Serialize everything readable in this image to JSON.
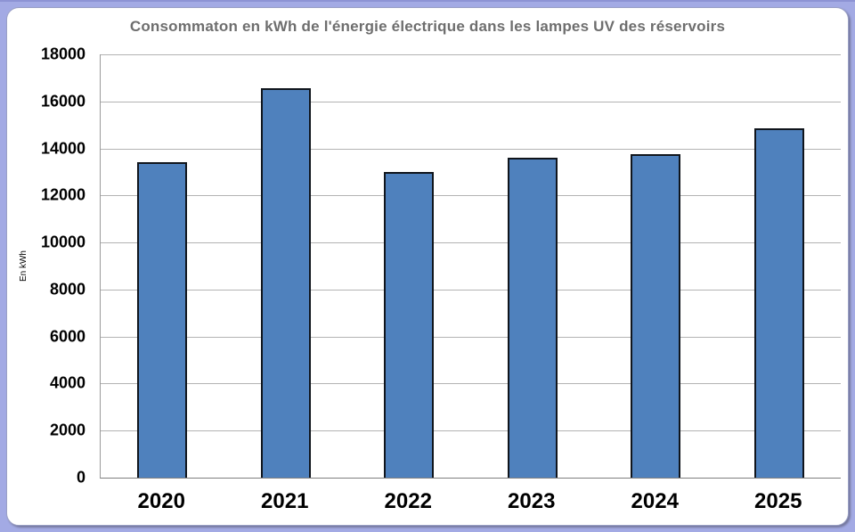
{
  "chart_data": {
    "type": "bar",
    "title": "Consommaton en kWh de l'énergie électrique dans les lampes UV des réservoirs",
    "ylabel": "En kWh",
    "xlabel": "",
    "categories": [
      "2020",
      "2021",
      "2022",
      "2023",
      "2024",
      "2025"
    ],
    "values": [
      13400,
      16550,
      13000,
      13600,
      13750,
      14850
    ],
    "ylim": [
      0,
      18000
    ],
    "yticks": [
      0,
      2000,
      4000,
      6000,
      8000,
      10000,
      12000,
      14000,
      16000,
      18000
    ],
    "grid": true,
    "legend": "none",
    "colors": {
      "bar_fill": "#4f81bd",
      "bar_border": "#10151c",
      "gridline": "#b3b3b3",
      "axis_line": "#7f7f7f",
      "title_text": "#6e6e6e",
      "tick_text": "#000000",
      "frame_background": "#a3aae4",
      "card_background": "#ffffff"
    }
  }
}
